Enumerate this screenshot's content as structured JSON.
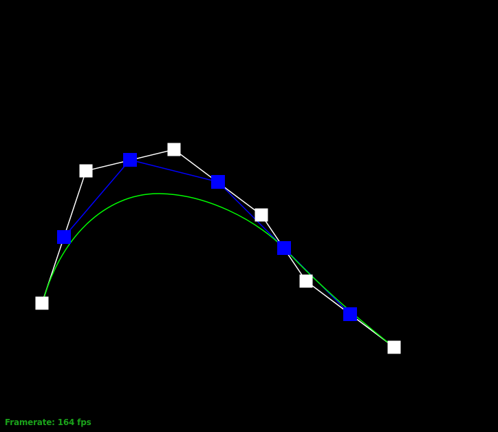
{
  "colors": {
    "background": "#000000",
    "control_polygon": "#ffffff",
    "control_points": "#ffffff",
    "derived_polygon": "#0000ff",
    "derived_points": "#0000ff",
    "curve": "#00ff00",
    "hud_text": "#1aa31a"
  },
  "hud": {
    "framerate_label": "Framerate: 164 fps"
  }
}
